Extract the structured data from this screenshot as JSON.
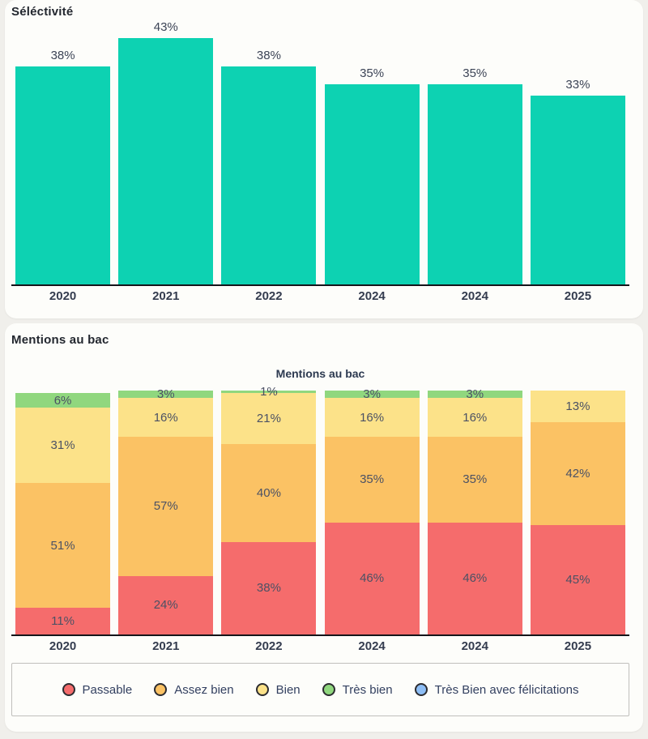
{
  "selectivity_card": {
    "title": "Séléctivité",
    "chart_data": {
      "type": "bar",
      "title": "Séléctivité",
      "categories": [
        "2020",
        "2021",
        "2022",
        "2024",
        "2024",
        "2025"
      ],
      "values": [
        38,
        43,
        38,
        35,
        35,
        33
      ],
      "value_labels": [
        "38%",
        "43%",
        "38%",
        "35%",
        "35%",
        "33%"
      ],
      "unit": "%",
      "bar_color": "#0dd2b2",
      "ylim": [
        0,
        43
      ],
      "grid": false,
      "y_axis_shown": false
    }
  },
  "mentions_card": {
    "title": "Mentions au bac",
    "chart_data": {
      "type": "stacked-bar",
      "title": "Mentions au bac",
      "categories": [
        "2020",
        "2021",
        "2022",
        "2024",
        "2024",
        "2025"
      ],
      "unit": "%",
      "ylim": [
        0,
        100
      ],
      "grid": false,
      "legend_position": "bottom",
      "series": [
        {
          "name": "Passable",
          "color": "#f56c6c",
          "values": [
            11,
            24,
            38,
            46,
            46,
            45
          ]
        },
        {
          "name": "Assez bien",
          "color": "#fbc264",
          "values": [
            51,
            57,
            40,
            35,
            35,
            42
          ]
        },
        {
          "name": "Bien",
          "color": "#fce289",
          "values": [
            31,
            16,
            21,
            16,
            16,
            13
          ]
        },
        {
          "name": "Très bien",
          "color": "#90d77e",
          "values": [
            6,
            3,
            1,
            3,
            3,
            0
          ]
        },
        {
          "name": "Très Bien avec félicitations",
          "color": "#8ebef5",
          "values": [
            0,
            0,
            0,
            0,
            0,
            0
          ]
        }
      ]
    },
    "legend": {
      "items": [
        {
          "label": "Passable",
          "color": "#f56c6c"
        },
        {
          "label": "Assez bien",
          "color": "#fbc264"
        },
        {
          "label": "Bien",
          "color": "#fce289"
        },
        {
          "label": "Très bien",
          "color": "#90d77e"
        },
        {
          "label": "Très Bien avec félicitations",
          "color": "#8ebef5"
        }
      ]
    }
  }
}
